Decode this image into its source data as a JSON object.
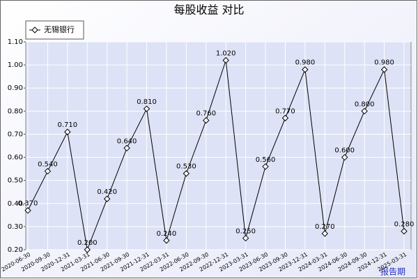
{
  "chart_data": {
    "type": "line",
    "title": "每股收益 对比",
    "x_label": "报告期",
    "categories": [
      "2020-06-30",
      "2020-09-30",
      "2020-12-31",
      "2021-03-31",
      "2021-06-30",
      "2021-09-30",
      "2021-12-31",
      "2022-03-31",
      "2022-06-30",
      "2022-09-30",
      "2022-12-31",
      "2023-03-31",
      "2023-06-30",
      "2023-09-30",
      "2023-12-31",
      "2024-03-31",
      "2024-06-30",
      "2024-09-30",
      "2024-12-31",
      "2025-03-31"
    ],
    "series": [
      {
        "name": "无锡银行",
        "color": "#000000",
        "values": [
          0.37,
          0.54,
          0.71,
          0.2,
          0.42,
          0.64,
          0.81,
          0.24,
          0.53,
          0.76,
          1.02,
          0.25,
          0.56,
          0.77,
          0.98,
          0.27,
          0.6,
          0.8,
          0.98,
          0.28
        ],
        "value_labels": [
          "0.370",
          "0.540",
          "0.710",
          "0.200",
          "0.420",
          "0.640",
          "0.810",
          "0.240",
          "0.530",
          "0.760",
          "1.020",
          "0.250",
          "0.560",
          "0.770",
          "0.980",
          "0.270",
          "0.600",
          "0.800",
          "0.980",
          "0.280"
        ]
      }
    ],
    "ylim": [
      0.2,
      1.1
    ],
    "yticks": [
      {
        "value": 0.2,
        "label": "0.20"
      },
      {
        "value": 0.3,
        "label": "0.30"
      },
      {
        "value": 0.4,
        "label": "0.40"
      },
      {
        "value": 0.5,
        "label": "0.50"
      },
      {
        "value": 0.6,
        "label": "0.60"
      },
      {
        "value": 0.7,
        "label": "0.70"
      },
      {
        "value": 0.8,
        "label": "0.80"
      },
      {
        "value": 0.9,
        "label": "0.90"
      },
      {
        "value": 1.0,
        "label": "1.00"
      },
      {
        "value": 1.1,
        "label": "1.10"
      }
    ],
    "grid": true,
    "legend": "top-left"
  }
}
